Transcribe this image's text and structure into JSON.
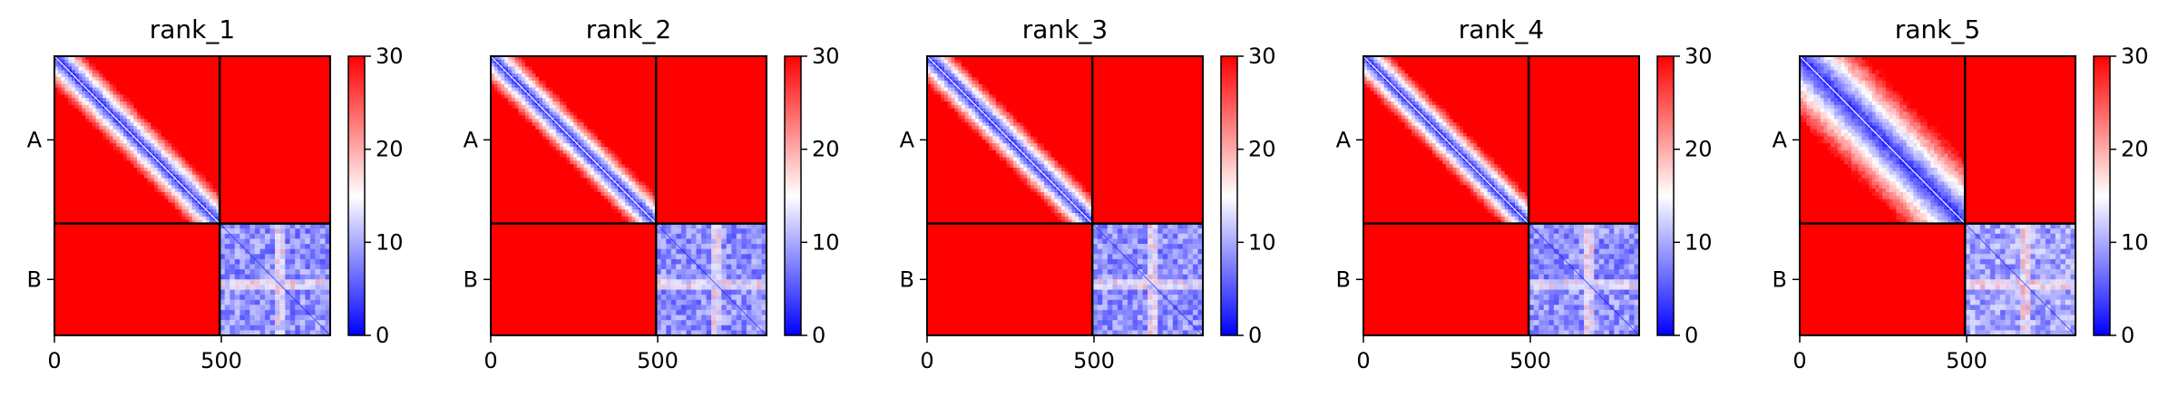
{
  "chart_data": [
    {
      "type": "heatmap",
      "title": "rank_1",
      "x_ticks": [
        "0",
        "500"
      ],
      "y_ticks": [
        "A",
        "B"
      ],
      "colorbar_ticks": [
        "0",
        "10",
        "20",
        "30"
      ],
      "color_range": [
        0,
        30
      ],
      "colormap": [
        "#0000ff",
        "#ffffff",
        "#ff0000"
      ],
      "n_residues": 826,
      "segment_boundary": 495,
      "blocks": {
        "A_A": "diagonal band low, rest high",
        "A_B": 30,
        "B_A": 30,
        "B_B": 5
      },
      "diag_band_width": 0.22
    },
    {
      "type": "heatmap",
      "title": "rank_2",
      "x_ticks": [
        "0",
        "500"
      ],
      "y_ticks": [
        "A",
        "B"
      ],
      "colorbar_ticks": [
        "0",
        "10",
        "20",
        "30"
      ],
      "color_range": [
        0,
        30
      ],
      "colormap": [
        "#0000ff",
        "#ffffff",
        "#ff0000"
      ],
      "n_residues": 826,
      "segment_boundary": 495,
      "blocks": {
        "A_A": "diagonal band low, rest high",
        "A_B": 30,
        "B_A": 30,
        "B_B": 5
      },
      "diag_band_width": 0.2
    },
    {
      "type": "heatmap",
      "title": "rank_3",
      "x_ticks": [
        "0",
        "500"
      ],
      "y_ticks": [
        "A",
        "B"
      ],
      "colorbar_ticks": [
        "0",
        "10",
        "20",
        "30"
      ],
      "color_range": [
        0,
        30
      ],
      "colormap": [
        "#0000ff",
        "#ffffff",
        "#ff0000"
      ],
      "n_residues": 826,
      "segment_boundary": 495,
      "blocks": {
        "A_A": "diagonal band low, rest high",
        "A_B": 30,
        "B_A": 30,
        "B_B": 5
      },
      "diag_band_width": 0.2
    },
    {
      "type": "heatmap",
      "title": "rank_4",
      "x_ticks": [
        "0",
        "500"
      ],
      "y_ticks": [
        "A",
        "B"
      ],
      "colorbar_ticks": [
        "0",
        "10",
        "20",
        "30"
      ],
      "color_range": [
        0,
        30
      ],
      "colormap": [
        "#0000ff",
        "#ffffff",
        "#ff0000"
      ],
      "n_residues": 826,
      "segment_boundary": 495,
      "blocks": {
        "A_A": "diagonal band low, rest high",
        "A_B": 30,
        "B_A": 30,
        "B_B": 5
      },
      "diag_band_width": 0.2
    },
    {
      "type": "heatmap",
      "title": "rank_5",
      "x_ticks": [
        "0",
        "500"
      ],
      "y_ticks": [
        "A",
        "B"
      ],
      "colorbar_ticks": [
        "0",
        "10",
        "20",
        "30"
      ],
      "color_range": [
        0,
        30
      ],
      "colormap": [
        "#0000ff",
        "#ffffff",
        "#ff0000"
      ],
      "n_residues": 826,
      "segment_boundary": 495,
      "blocks": {
        "A_A": "diagonal band low, rest high",
        "A_B": 30,
        "B_A": 30,
        "B_B": 6
      },
      "diag_band_width": 0.45
    }
  ]
}
